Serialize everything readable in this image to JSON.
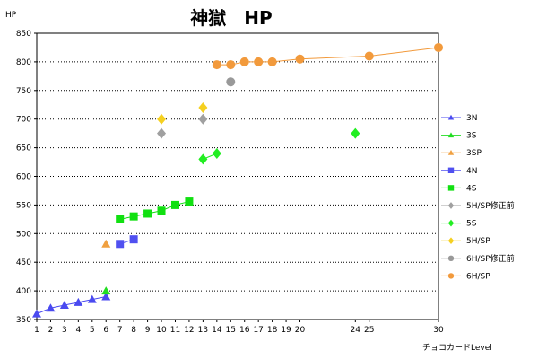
{
  "chart_data": {
    "type": "scatter",
    "title": "神獄　HP",
    "ylabel": "HP",
    "xlabel": "チョコカードLevel",
    "ylim": [
      350,
      850
    ],
    "y_ticks": [
      350,
      400,
      450,
      500,
      550,
      600,
      650,
      700,
      750,
      800,
      850
    ],
    "x_ticks": [
      1,
      2,
      3,
      4,
      5,
      6,
      7,
      8,
      9,
      10,
      11,
      12,
      13,
      14,
      15,
      16,
      17,
      18,
      19,
      20,
      24,
      25,
      30
    ],
    "grid": "horizontal dotted",
    "legend_position": "right",
    "series": [
      {
        "name": "3N",
        "color": "#4a4af0",
        "marker": "triangle",
        "line": true,
        "points": [
          [
            1,
            360
          ],
          [
            2,
            370
          ],
          [
            3,
            375
          ],
          [
            4,
            380
          ],
          [
            5,
            385
          ],
          [
            6,
            390
          ]
        ]
      },
      {
        "name": "3S",
        "color": "#22dd22",
        "marker": "triangle",
        "line": false,
        "points": [
          [
            6,
            400
          ]
        ]
      },
      {
        "name": "3SP",
        "color": "#f0a040",
        "marker": "triangle",
        "line": false,
        "points": [
          [
            6,
            482
          ]
        ]
      },
      {
        "name": "4N",
        "color": "#5050f0",
        "marker": "square",
        "line": true,
        "points": [
          [
            7,
            482
          ],
          [
            8,
            490
          ]
        ]
      },
      {
        "name": "4S",
        "color": "#11e011",
        "marker": "square",
        "line": true,
        "points": [
          [
            7,
            525
          ],
          [
            8,
            530
          ],
          [
            9,
            535
          ],
          [
            10,
            540
          ],
          [
            11,
            550
          ],
          [
            12,
            556
          ]
        ]
      },
      {
        "name": "5H/SP修正前",
        "color": "#a0a0a0",
        "marker": "diamond",
        "line": false,
        "points": [
          [
            10,
            675
          ],
          [
            13,
            700
          ]
        ]
      },
      {
        "name": "5S",
        "color": "#22ee22",
        "marker": "diamond",
        "line": true,
        "points": [
          [
            13,
            630
          ],
          [
            14,
            640
          ]
        ]
      },
      {
        "name": "5H/SP",
        "color": "#f5d020",
        "marker": "diamond",
        "line": false,
        "points": [
          [
            10,
            700
          ],
          [
            13,
            720
          ]
        ]
      },
      {
        "name": "6H/SP修正前",
        "color": "#999999",
        "marker": "circle",
        "line": false,
        "points": [
          [
            15,
            765
          ]
        ]
      },
      {
        "name": "6H/SP",
        "color": "#f29a3c",
        "marker": "circle",
        "line": true,
        "points": [
          [
            14,
            795
          ],
          [
            15,
            795
          ],
          [
            16,
            800
          ],
          [
            17,
            800
          ],
          [
            18,
            800
          ],
          [
            20,
            805
          ],
          [
            25,
            810
          ],
          [
            30,
            825
          ]
        ]
      },
      {
        "name": "",
        "color": "#22ee22",
        "marker": "diamond",
        "line": false,
        "points": [
          [
            24,
            675
          ]
        ]
      }
    ]
  }
}
